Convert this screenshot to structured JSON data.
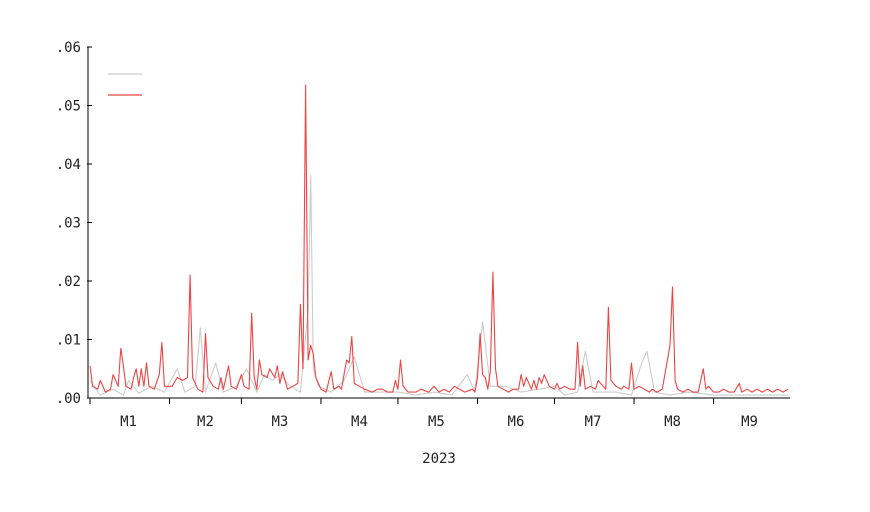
{
  "chart_data": {
    "type": "line",
    "title": "",
    "xlabel": "2023",
    "ylabel": "",
    "ylim": [
      0,
      0.06
    ],
    "yticks": [
      0,
      0.01,
      0.02,
      0.03,
      0.04,
      0.05,
      0.06
    ],
    "ytick_labels": [
      ".00",
      ".01",
      ".02",
      ".03",
      ".04",
      ".05",
      ".06"
    ],
    "x_range": [
      "2023-01-01",
      "2023-09-30"
    ],
    "xtick_dates": [
      "2023-01-01",
      "2023-02-01",
      "2023-03-01",
      "2023-04-01",
      "2023-05-01",
      "2023-06-01",
      "2023-07-01",
      "2023-08-01",
      "2023-09-01"
    ],
    "month_labels": [
      "M1",
      "M2",
      "M3",
      "M4",
      "M5",
      "M6",
      "M7",
      "M8",
      "M9"
    ],
    "legend": {
      "position": "top-left",
      "entries": [
        "",
        ""
      ]
    },
    "grid": false,
    "series": [
      {
        "color": "#cccccc",
        "points": [
          [
            "2023-01-01",
            0.003
          ],
          [
            "2023-01-05",
            0.0005
          ],
          [
            "2023-01-10",
            0.0015
          ],
          [
            "2023-01-14",
            0.0005
          ],
          [
            "2023-01-16",
            0.003
          ],
          [
            "2023-01-20",
            0.0008
          ],
          [
            "2023-01-25",
            0.002
          ],
          [
            "2023-01-30",
            0.001
          ],
          [
            "2023-02-04",
            0.005
          ],
          [
            "2023-02-07",
            0.001
          ],
          [
            "2023-02-11",
            0.002
          ],
          [
            "2023-02-13",
            0.012
          ],
          [
            "2023-02-15",
            0.001
          ],
          [
            "2023-02-19",
            0.006
          ],
          [
            "2023-02-22",
            0.001
          ],
          [
            "2023-02-27",
            0.002
          ],
          [
            "2023-03-03",
            0.005
          ],
          [
            "2023-03-07",
            0.001
          ],
          [
            "2023-03-10",
            0.004
          ],
          [
            "2023-03-13",
            0.003
          ],
          [
            "2023-03-16",
            0.004
          ],
          [
            "2023-03-20",
            0.002
          ],
          [
            "2023-03-24",
            0.001
          ],
          [
            "2023-03-27",
            0.015
          ],
          [
            "2023-03-28",
            0.038
          ],
          [
            "2023-03-29",
            0.005
          ],
          [
            "2023-03-31",
            0.002
          ],
          [
            "2023-04-05",
            0.001
          ],
          [
            "2023-04-10",
            0.003
          ],
          [
            "2023-04-14",
            0.007
          ],
          [
            "2023-04-18",
            0.001
          ],
          [
            "2023-04-25",
            0.001
          ],
          [
            "2023-05-01",
            0.001
          ],
          [
            "2023-05-08",
            0.0005
          ],
          [
            "2023-05-15",
            0.001
          ],
          [
            "2023-05-22",
            0.0005
          ],
          [
            "2023-05-28",
            0.004
          ],
          [
            "2023-05-31",
            0.001
          ],
          [
            "2023-06-03",
            0.013
          ],
          [
            "2023-06-06",
            0.002
          ],
          [
            "2023-06-12",
            0.002
          ],
          [
            "2023-06-18",
            0.001
          ],
          [
            "2023-06-25",
            0.0015
          ],
          [
            "2023-07-01",
            0.002
          ],
          [
            "2023-07-05",
            0.0005
          ],
          [
            "2023-07-10",
            0.001
          ],
          [
            "2023-07-13",
            0.008
          ],
          [
            "2023-07-16",
            0.001
          ],
          [
            "2023-07-25",
            0.001
          ],
          [
            "2023-07-31",
            0.0005
          ],
          [
            "2023-08-04",
            0.006
          ],
          [
            "2023-08-06",
            0.008
          ],
          [
            "2023-08-09",
            0.001
          ],
          [
            "2023-08-15",
            0.0005
          ],
          [
            "2023-08-22",
            0.001
          ],
          [
            "2023-09-01",
            0.0005
          ],
          [
            "2023-09-10",
            0.0005
          ],
          [
            "2023-09-20",
            0.0005
          ],
          [
            "2023-09-30",
            0.0005
          ]
        ]
      },
      {
        "color": "#ee4444",
        "points": [
          [
            "2023-01-01",
            0.0055
          ],
          [
            "2023-01-02",
            0.002
          ],
          [
            "2023-01-04",
            0.0015
          ],
          [
            "2023-01-05",
            0.003
          ],
          [
            "2023-01-07",
            0.001
          ],
          [
            "2023-01-09",
            0.0015
          ],
          [
            "2023-01-10",
            0.004
          ],
          [
            "2023-01-12",
            0.002
          ],
          [
            "2023-01-13",
            0.0085
          ],
          [
            "2023-01-14",
            0.0055
          ],
          [
            "2023-01-15",
            0.002
          ],
          [
            "2023-01-17",
            0.0015
          ],
          [
            "2023-01-18",
            0.0035
          ],
          [
            "2023-01-19",
            0.005
          ],
          [
            "2023-01-20",
            0.002
          ],
          [
            "2023-01-21",
            0.005
          ],
          [
            "2023-01-22",
            0.002
          ],
          [
            "2023-01-23",
            0.006
          ],
          [
            "2023-01-24",
            0.002
          ],
          [
            "2023-01-26",
            0.0015
          ],
          [
            "2023-01-28",
            0.004
          ],
          [
            "2023-01-29",
            0.0095
          ],
          [
            "2023-01-30",
            0.002
          ],
          [
            "2023-02-02",
            0.002
          ],
          [
            "2023-02-04",
            0.0035
          ],
          [
            "2023-02-06",
            0.003
          ],
          [
            "2023-02-08",
            0.0035
          ],
          [
            "2023-02-09",
            0.021
          ],
          [
            "2023-02-10",
            0.0035
          ],
          [
            "2023-02-12",
            0.0015
          ],
          [
            "2023-02-14",
            0.001
          ],
          [
            "2023-02-15",
            0.011
          ],
          [
            "2023-02-16",
            0.0035
          ],
          [
            "2023-02-18",
            0.002
          ],
          [
            "2023-02-20",
            0.0015
          ],
          [
            "2023-02-21",
            0.0035
          ],
          [
            "2023-02-22",
            0.0015
          ],
          [
            "2023-02-24",
            0.0055
          ],
          [
            "2023-02-25",
            0.002
          ],
          [
            "2023-02-27",
            0.0015
          ],
          [
            "2023-03-01",
            0.004
          ],
          [
            "2023-03-02",
            0.002
          ],
          [
            "2023-03-04",
            0.0015
          ],
          [
            "2023-03-05",
            0.0145
          ],
          [
            "2023-03-06",
            0.0035
          ],
          [
            "2023-03-07",
            0.0015
          ],
          [
            "2023-03-08",
            0.0065
          ],
          [
            "2023-03-09",
            0.004
          ],
          [
            "2023-03-11",
            0.0035
          ],
          [
            "2023-03-12",
            0.005
          ],
          [
            "2023-03-14",
            0.0035
          ],
          [
            "2023-03-15",
            0.0055
          ],
          [
            "2023-03-16",
            0.0025
          ],
          [
            "2023-03-17",
            0.0045
          ],
          [
            "2023-03-19",
            0.0015
          ],
          [
            "2023-03-21",
            0.002
          ],
          [
            "2023-03-23",
            0.0025
          ],
          [
            "2023-03-24",
            0.016
          ],
          [
            "2023-03-25",
            0.005
          ],
          [
            "2023-03-26",
            0.0535
          ],
          [
            "2023-03-27",
            0.0065
          ],
          [
            "2023-03-28",
            0.009
          ],
          [
            "2023-03-29",
            0.0075
          ],
          [
            "2023-03-30",
            0.0035
          ],
          [
            "2023-04-01",
            0.0015
          ],
          [
            "2023-04-03",
            0.001
          ],
          [
            "2023-04-05",
            0.0045
          ],
          [
            "2023-04-06",
            0.0015
          ],
          [
            "2023-04-08",
            0.002
          ],
          [
            "2023-04-09",
            0.0015
          ],
          [
            "2023-04-11",
            0.0065
          ],
          [
            "2023-04-12",
            0.006
          ],
          [
            "2023-04-13",
            0.0105
          ],
          [
            "2023-04-14",
            0.0025
          ],
          [
            "2023-04-16",
            0.002
          ],
          [
            "2023-04-18",
            0.0015
          ],
          [
            "2023-04-21",
            0.001
          ],
          [
            "2023-04-23",
            0.0015
          ],
          [
            "2023-04-25",
            0.0015
          ],
          [
            "2023-04-27",
            0.001
          ],
          [
            "2023-04-29",
            0.001
          ],
          [
            "2023-04-30",
            0.003
          ],
          [
            "2023-05-01",
            0.0015
          ],
          [
            "2023-05-02",
            0.0065
          ],
          [
            "2023-05-03",
            0.002
          ],
          [
            "2023-05-05",
            0.001
          ],
          [
            "2023-05-08",
            0.001
          ],
          [
            "2023-05-10",
            0.0015
          ],
          [
            "2023-05-13",
            0.001
          ],
          [
            "2023-05-15",
            0.002
          ],
          [
            "2023-05-17",
            0.001
          ],
          [
            "2023-05-19",
            0.0015
          ],
          [
            "2023-05-21",
            0.001
          ],
          [
            "2023-05-23",
            0.002
          ],
          [
            "2023-05-25",
            0.0015
          ],
          [
            "2023-05-27",
            0.001
          ],
          [
            "2023-05-30",
            0.0015
          ],
          [
            "2023-05-31",
            0.001
          ],
          [
            "2023-06-01",
            0.0035
          ],
          [
            "2023-06-02",
            0.011
          ],
          [
            "2023-06-03",
            0.004
          ],
          [
            "2023-06-04",
            0.0035
          ],
          [
            "2023-06-05",
            0.0015
          ],
          [
            "2023-06-06",
            0.0045
          ],
          [
            "2023-06-07",
            0.0215
          ],
          [
            "2023-06-08",
            0.005
          ],
          [
            "2023-06-09",
            0.002
          ],
          [
            "2023-06-11",
            0.0015
          ],
          [
            "2023-06-13",
            0.001
          ],
          [
            "2023-06-15",
            0.0015
          ],
          [
            "2023-06-17",
            0.0015
          ],
          [
            "2023-06-18",
            0.004
          ],
          [
            "2023-06-19",
            0.002
          ],
          [
            "2023-06-20",
            0.0035
          ],
          [
            "2023-06-22",
            0.0015
          ],
          [
            "2023-06-23",
            0.003
          ],
          [
            "2023-06-24",
            0.0015
          ],
          [
            "2023-06-25",
            0.0035
          ],
          [
            "2023-06-26",
            0.0025
          ],
          [
            "2023-06-27",
            0.004
          ],
          [
            "2023-06-29",
            0.002
          ],
          [
            "2023-07-01",
            0.0015
          ],
          [
            "2023-07-02",
            0.0025
          ],
          [
            "2023-07-03",
            0.0015
          ],
          [
            "2023-07-05",
            0.002
          ],
          [
            "2023-07-07",
            0.0015
          ],
          [
            "2023-07-09",
            0.0015
          ],
          [
            "2023-07-10",
            0.0095
          ],
          [
            "2023-07-11",
            0.002
          ],
          [
            "2023-07-12",
            0.0055
          ],
          [
            "2023-07-13",
            0.0015
          ],
          [
            "2023-07-15",
            0.002
          ],
          [
            "2023-07-17",
            0.0015
          ],
          [
            "2023-07-18",
            0.003
          ],
          [
            "2023-07-20",
            0.002
          ],
          [
            "2023-07-21",
            0.0015
          ],
          [
            "2023-07-22",
            0.0155
          ],
          [
            "2023-07-23",
            0.003
          ],
          [
            "2023-07-25",
            0.002
          ],
          [
            "2023-07-27",
            0.0015
          ],
          [
            "2023-07-28",
            0.002
          ],
          [
            "2023-07-30",
            0.0015
          ],
          [
            "2023-07-31",
            0.006
          ],
          [
            "2023-08-01",
            0.0015
          ],
          [
            "2023-08-03",
            0.002
          ],
          [
            "2023-08-05",
            0.0015
          ],
          [
            "2023-08-07",
            0.001
          ],
          [
            "2023-08-08",
            0.0015
          ],
          [
            "2023-08-10",
            0.001
          ],
          [
            "2023-08-12",
            0.0015
          ],
          [
            "2023-08-14",
            0.0065
          ],
          [
            "2023-08-15",
            0.009
          ],
          [
            "2023-08-16",
            0.019
          ],
          [
            "2023-08-17",
            0.003
          ],
          [
            "2023-08-18",
            0.0015
          ],
          [
            "2023-08-20",
            0.001
          ],
          [
            "2023-08-22",
            0.0015
          ],
          [
            "2023-08-24",
            0.001
          ],
          [
            "2023-08-26",
            0.001
          ],
          [
            "2023-08-28",
            0.005
          ],
          [
            "2023-08-29",
            0.0015
          ],
          [
            "2023-08-30",
            0.002
          ],
          [
            "2023-09-01",
            0.001
          ],
          [
            "2023-09-03",
            0.001
          ],
          [
            "2023-09-05",
            0.0015
          ],
          [
            "2023-09-07",
            0.001
          ],
          [
            "2023-09-09",
            0.001
          ],
          [
            "2023-09-11",
            0.0025
          ],
          [
            "2023-09-12",
            0.001
          ],
          [
            "2023-09-14",
            0.0015
          ],
          [
            "2023-09-16",
            0.001
          ],
          [
            "2023-09-18",
            0.0015
          ],
          [
            "2023-09-20",
            0.001
          ],
          [
            "2023-09-22",
            0.0015
          ],
          [
            "2023-09-24",
            0.001
          ],
          [
            "2023-09-26",
            0.0015
          ],
          [
            "2023-09-28",
            0.001
          ],
          [
            "2023-09-30",
            0.0015
          ]
        ]
      }
    ]
  }
}
